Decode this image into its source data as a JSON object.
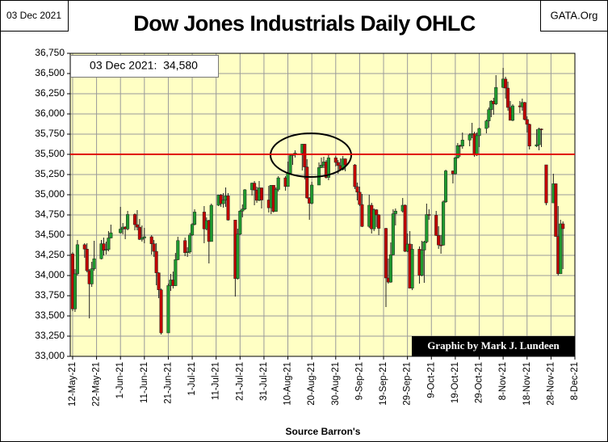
{
  "chart_data": {
    "type": "candlestick",
    "title": "Dow Jones Industrials Daily OHLC",
    "date_box": "03 Dec 2021",
    "site": "GATA.Org",
    "annotation": "03 Dec 2021:  34,580",
    "credit": "Graphic by Mark J. Lundeen",
    "x_label": "Source Barron's",
    "up_color": "#1f9a2e",
    "down_color": "#c00000",
    "hline": {
      "value": 35500,
      "color": "#e00000"
    },
    "grid": true,
    "ylim": [
      33000,
      36750
    ],
    "yticks": [
      {
        "value": 33000,
        "label": "33,000"
      },
      {
        "value": 33250,
        "label": "33,250"
      },
      {
        "value": 33500,
        "label": "33,500"
      },
      {
        "value": 33750,
        "label": "33,750"
      },
      {
        "value": 34000,
        "label": "34,000"
      },
      {
        "value": 34250,
        "label": "34,250"
      },
      {
        "value": 34500,
        "label": "34,500"
      },
      {
        "value": 34750,
        "label": "34,750"
      },
      {
        "value": 35000,
        "label": "35,000"
      },
      {
        "value": 35250,
        "label": "35,250"
      },
      {
        "value": 35500,
        "label": "35,500"
      },
      {
        "value": 35750,
        "label": "35,750"
      },
      {
        "value": 36000,
        "label": "36,000"
      },
      {
        "value": 36250,
        "label": "36,250"
      },
      {
        "value": 36500,
        "label": "36,500"
      },
      {
        "value": 36750,
        "label": "36,750"
      }
    ],
    "xlim": [
      "2021-05-11",
      "2021-12-08"
    ],
    "xticks": [
      {
        "value": "2021-05-12",
        "label": "12-May-21"
      },
      {
        "value": "2021-05-22",
        "label": "22-May-21"
      },
      {
        "value": "2021-06-01",
        "label": "1-Jun-21"
      },
      {
        "value": "2021-06-11",
        "label": "11-Jun-21"
      },
      {
        "value": "2021-06-21",
        "label": "21-Jun-21"
      },
      {
        "value": "2021-07-01",
        "label": "1-Jul-21"
      },
      {
        "value": "2021-07-11",
        "label": "11-Jul-21"
      },
      {
        "value": "2021-07-21",
        "label": "21-Jul-21"
      },
      {
        "value": "2021-07-31",
        "label": "31-Jul-21"
      },
      {
        "value": "2021-08-10",
        "label": "10-Aug-21"
      },
      {
        "value": "2021-08-20",
        "label": "20-Aug-21"
      },
      {
        "value": "2021-08-30",
        "label": "30-Aug-21"
      },
      {
        "value": "2021-09-09",
        "label": "9-Sep-21"
      },
      {
        "value": "2021-09-19",
        "label": "19-Sep-21"
      },
      {
        "value": "2021-09-29",
        "label": "29-Sep-21"
      },
      {
        "value": "2021-10-09",
        "label": "9-Oct-21"
      },
      {
        "value": "2021-10-19",
        "label": "19-Oct-21"
      },
      {
        "value": "2021-10-29",
        "label": "29-Oct-21"
      },
      {
        "value": "2021-11-08",
        "label": "8-Nov-21"
      },
      {
        "value": "2021-11-18",
        "label": "18-Nov-21"
      },
      {
        "value": "2021-11-28",
        "label": "28-Nov-21"
      },
      {
        "value": "2021-12-08",
        "label": "8-Dec-21"
      }
    ],
    "x": [
      "2021-05-12",
      "2021-05-13",
      "2021-05-14",
      "2021-05-17",
      "2021-05-18",
      "2021-05-19",
      "2021-05-20",
      "2021-05-21",
      "2021-05-24",
      "2021-05-25",
      "2021-05-26",
      "2021-05-27",
      "2021-05-28",
      "2021-06-01",
      "2021-06-02",
      "2021-06-03",
      "2021-06-04",
      "2021-06-07",
      "2021-06-08",
      "2021-06-09",
      "2021-06-10",
      "2021-06-11",
      "2021-06-14",
      "2021-06-15",
      "2021-06-16",
      "2021-06-17",
      "2021-06-18",
      "2021-06-21",
      "2021-06-22",
      "2021-06-23",
      "2021-06-24",
      "2021-06-25",
      "2021-06-28",
      "2021-06-29",
      "2021-06-30",
      "2021-07-01",
      "2021-07-02",
      "2021-07-06",
      "2021-07-07",
      "2021-07-08",
      "2021-07-09",
      "2021-07-12",
      "2021-07-13",
      "2021-07-14",
      "2021-07-15",
      "2021-07-16",
      "2021-07-19",
      "2021-07-20",
      "2021-07-21",
      "2021-07-22",
      "2021-07-23",
      "2021-07-26",
      "2021-07-27",
      "2021-07-28",
      "2021-07-29",
      "2021-07-30",
      "2021-08-02",
      "2021-08-03",
      "2021-08-04",
      "2021-08-05",
      "2021-08-06",
      "2021-08-09",
      "2021-08-10",
      "2021-08-11",
      "2021-08-12",
      "2021-08-13",
      "2021-08-16",
      "2021-08-17",
      "2021-08-18",
      "2021-08-19",
      "2021-08-20",
      "2021-08-23",
      "2021-08-24",
      "2021-08-25",
      "2021-08-26",
      "2021-08-27",
      "2021-08-30",
      "2021-08-31",
      "2021-09-01",
      "2021-09-02",
      "2021-09-03",
      "2021-09-07",
      "2021-09-08",
      "2021-09-09",
      "2021-09-10",
      "2021-09-13",
      "2021-09-14",
      "2021-09-15",
      "2021-09-16",
      "2021-09-17",
      "2021-09-20",
      "2021-09-21",
      "2021-09-22",
      "2021-09-23",
      "2021-09-24",
      "2021-09-27",
      "2021-09-28",
      "2021-09-29",
      "2021-09-30",
      "2021-10-01",
      "2021-10-04",
      "2021-10-05",
      "2021-10-06",
      "2021-10-07",
      "2021-10-08",
      "2021-10-11",
      "2021-10-12",
      "2021-10-13",
      "2021-10-14",
      "2021-10-15",
      "2021-10-18",
      "2021-10-19",
      "2021-10-20",
      "2021-10-21",
      "2021-10-22",
      "2021-10-25",
      "2021-10-26",
      "2021-10-27",
      "2021-10-28",
      "2021-10-29",
      "2021-11-01",
      "2021-11-02",
      "2021-11-03",
      "2021-11-04",
      "2021-11-05",
      "2021-11-08",
      "2021-11-09",
      "2021-11-10",
      "2021-11-11",
      "2021-11-12",
      "2021-11-15",
      "2021-11-16",
      "2021-11-17",
      "2021-11-18",
      "2021-11-19",
      "2021-11-22",
      "2021-11-23",
      "2021-11-24",
      "2021-11-26",
      "2021-11-29",
      "2021-11-30",
      "2021-12-01",
      "2021-12-02",
      "2021-12-03"
    ],
    "open": [
      34269,
      33587,
      34021,
      34382,
      34327,
      34060,
      33896,
      34084,
      34208,
      34394,
      34312,
      34323,
      34465,
      34529,
      34575,
      34600,
      34577,
      34756,
      34630,
      34599,
      34447,
      34466,
      34480,
      34393,
      34299,
      34033,
      33823,
      33290,
      33876,
      33945,
      33874,
      34196,
      34433,
      34283,
      34292,
      34502,
      34633,
      34786,
      34577,
      34681,
      34421,
      34870,
      34996,
      34889,
      34933,
      34987,
      34687,
      33962,
      34512,
      34798,
      34823,
      35061,
      35144,
      35058,
      34931,
      35085,
      34935,
      34838,
      35117,
      34793,
      35065,
      35209,
      35102,
      35265,
      35485,
      35500,
      35516,
      35626,
      35344,
      34961,
      34894,
      35120,
      35336,
      35367,
      35406,
      35214,
      35456,
      35400,
      35361,
      35313,
      35444,
      35369,
      35100,
      35032,
      34879,
      34608,
      34870,
      34578,
      34814,
      34751,
      34584,
      33970,
      33919,
      34258,
      34765,
      34798,
      34870,
      34300,
      34390,
      33844,
      34326,
      34002,
      34315,
      34417,
      34755,
      34746,
      34496,
      34378,
      34377,
      34912,
      35295,
      35259,
      35457,
      35609,
      35603,
      35677,
      35741,
      35757,
      35491,
      35731,
      35820,
      35913,
      36053,
      36158,
      36124,
      36328,
      36432,
      36320,
      36080,
      35921,
      36100,
      36087,
      36142,
      35931,
      35871,
      35602,
      35619,
      35814,
      35370,
      34899,
      35136,
      34484,
      34022,
      34640
    ],
    "high": [
      34290,
      34080,
      34440,
      34400,
      34400,
      34080,
      34170,
      34430,
      34440,
      34470,
      34420,
      34550,
      34630,
      34850,
      34650,
      34610,
      34800,
      34770,
      34810,
      34700,
      34620,
      34590,
      34500,
      34440,
      34400,
      34040,
      33840,
      33900,
      34020,
      34050,
      34280,
      34480,
      34470,
      34350,
      34530,
      34650,
      34820,
      34860,
      34720,
      34690,
      34890,
      35000,
      35010,
      35020,
      35090,
      35020,
      34690,
      34580,
      34810,
      34880,
      35070,
      35150,
      35170,
      35100,
      35170,
      35090,
      35110,
      35120,
      35120,
      35090,
      35230,
      35230,
      35410,
      35510,
      35510,
      35550,
      35630,
      35630,
      35440,
      34970,
      35160,
      35400,
      35460,
      35470,
      35430,
      35510,
      35480,
      35430,
      35450,
      35480,
      35450,
      35380,
      35150,
      35100,
      35010,
      35000,
      34900,
      34830,
      34820,
      34760,
      34590,
      34210,
      34410,
      34820,
      34830,
      34960,
      34880,
      34520,
      34550,
      34390,
      34360,
      34430,
      34430,
      34890,
      34820,
      34800,
      34610,
      34500,
      34930,
      35310,
      35300,
      35470,
      35640,
      35620,
      35770,
      35760,
      35890,
      35780,
      35770,
      35830,
      35930,
      36080,
      36170,
      36200,
      36480,
      36570,
      36460,
      36400,
      36160,
      36120,
      36160,
      36190,
      36150,
      35970,
      35880,
      35810,
      35830,
      35820,
      35370,
      35260,
      35140,
      34860,
      34690,
      34670
    ],
    "low": [
      33560,
      33550,
      34000,
      34220,
      34040,
      33470,
      33860,
      34060,
      34200,
      34250,
      34260,
      34300,
      34460,
      34520,
      34510,
      34450,
      34560,
      34560,
      34560,
      34440,
      34420,
      34400,
      34260,
      34230,
      33880,
      33720,
      33270,
      33290,
      33810,
      33840,
      33870,
      34190,
      34240,
      34230,
      34270,
      34490,
      34620,
      34400,
      34560,
      34150,
      34420,
      34860,
      34850,
      34840,
      34850,
      34680,
      33740,
      33950,
      34500,
      34720,
      34810,
      34990,
      34870,
      34900,
      34920,
      34830,
      34780,
      34760,
      34780,
      34790,
      35040,
      35050,
      35100,
      35260,
      35370,
      35460,
      35300,
      35190,
      34950,
      34690,
      34880,
      35120,
      35330,
      35330,
      35200,
      35180,
      35350,
      35260,
      35300,
      35300,
      35290,
      35070,
      34930,
      34860,
      34600,
      34590,
      34520,
      34550,
      34600,
      34500,
      33610,
      33900,
      33910,
      34250,
      34620,
      34780,
      34290,
      34290,
      33840,
      33820,
      33900,
      33990,
      33910,
      34400,
      34690,
      34490,
      34330,
      34270,
      34370,
      34900,
      35140,
      35250,
      35450,
      35470,
      35570,
      35600,
      35700,
      35470,
      35480,
      35590,
      35760,
      35830,
      35960,
      35990,
      36110,
      36320,
      36190,
      36040,
      35920,
      35910,
      36010,
      36040,
      35920,
      35770,
      35560,
      35590,
      35550,
      35590,
      34870,
      34900,
      34480,
      34000,
      34020,
      34080
    ],
    "close": [
      33587,
      34021,
      34382,
      34327,
      34060,
      33896,
      34084,
      34208,
      34394,
      34312,
      34323,
      34465,
      34529,
      34575,
      34600,
      34577,
      34756,
      34630,
      34599,
      34447,
      34466,
      34480,
      34393,
      34299,
      34033,
      33823,
      33290,
      33876,
      33945,
      33874,
      34196,
      34433,
      34283,
      34292,
      34502,
      34633,
      34786,
      34577,
      34681,
      34421,
      34870,
      34996,
      34889,
      34933,
      34987,
      34687,
      33962,
      34512,
      34798,
      34823,
      35061,
      35144,
      35058,
      34931,
      35085,
      34935,
      34838,
      35117,
      34793,
      35065,
      35209,
      35102,
      35265,
      35485,
      35500,
      35516,
      35626,
      35344,
      34961,
      34894,
      35120,
      35336,
      35367,
      35406,
      35214,
      35456,
      35400,
      35361,
      35313,
      35444,
      35369,
      35100,
      35032,
      34879,
      34608,
      34870,
      34578,
      34814,
      34751,
      34584,
      33970,
      33919,
      34258,
      34765,
      34798,
      34870,
      34300,
      34390,
      33844,
      34326,
      34002,
      34315,
      34417,
      34755,
      34746,
      34496,
      34378,
      34377,
      34912,
      35295,
      35259,
      35457,
      35609,
      35603,
      35677,
      35741,
      35757,
      35491,
      35731,
      35820,
      35913,
      36053,
      36158,
      36124,
      36328,
      36432,
      36320,
      36080,
      35921,
      36100,
      36087,
      36142,
      35931,
      35871,
      35602,
      35619,
      35814,
      35804,
      34899,
      35136,
      34484,
      34022,
      34640,
      34580
    ]
  }
}
